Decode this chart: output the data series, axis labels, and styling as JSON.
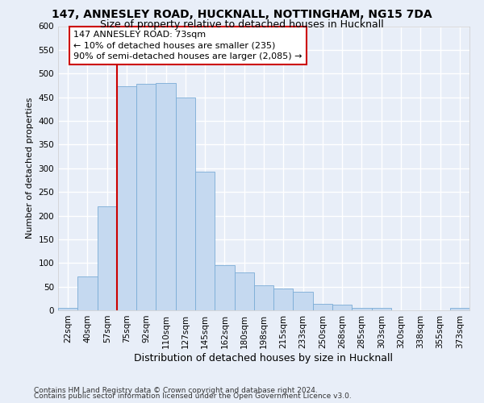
{
  "title": "147, ANNESLEY ROAD, HUCKNALL, NOTTINGHAM, NG15 7DA",
  "subtitle": "Size of property relative to detached houses in Hucknall",
  "xlabel": "Distribution of detached houses by size in Hucknall",
  "ylabel": "Number of detached properties",
  "categories": [
    "22sqm",
    "40sqm",
    "57sqm",
    "75sqm",
    "92sqm",
    "110sqm",
    "127sqm",
    "145sqm",
    "162sqm",
    "180sqm",
    "198sqm",
    "215sqm",
    "233sqm",
    "250sqm",
    "268sqm",
    "285sqm",
    "303sqm",
    "320sqm",
    "338sqm",
    "355sqm",
    "373sqm"
  ],
  "values": [
    5,
    72,
    220,
    473,
    478,
    480,
    450,
    293,
    95,
    80,
    53,
    46,
    40,
    13,
    12,
    5,
    5,
    0,
    0,
    0,
    5
  ],
  "bar_color": "#c5d9f0",
  "bar_edgecolor": "#7aacd6",
  "vline_color": "#cc0000",
  "vline_x_index": 3,
  "annotation_text": "147 ANNESLEY ROAD: 73sqm\n← 10% of detached houses are smaller (235)\n90% of semi-detached houses are larger (2,085) →",
  "annotation_box_edgecolor": "#cc0000",
  "annotation_box_facecolor": "white",
  "ylim": [
    0,
    600
  ],
  "yticks": [
    0,
    50,
    100,
    150,
    200,
    250,
    300,
    350,
    400,
    450,
    500,
    550,
    600
  ],
  "footer1": "Contains HM Land Registry data © Crown copyright and database right 2024.",
  "footer2": "Contains public sector information licensed under the Open Government Licence v3.0.",
  "bg_color": "#e8eef8",
  "grid_color": "white",
  "title_fontsize": 10,
  "subtitle_fontsize": 9,
  "ylabel_fontsize": 8,
  "xlabel_fontsize": 9,
  "tick_fontsize": 7.5,
  "footer_fontsize": 6.5,
  "annot_fontsize": 8
}
